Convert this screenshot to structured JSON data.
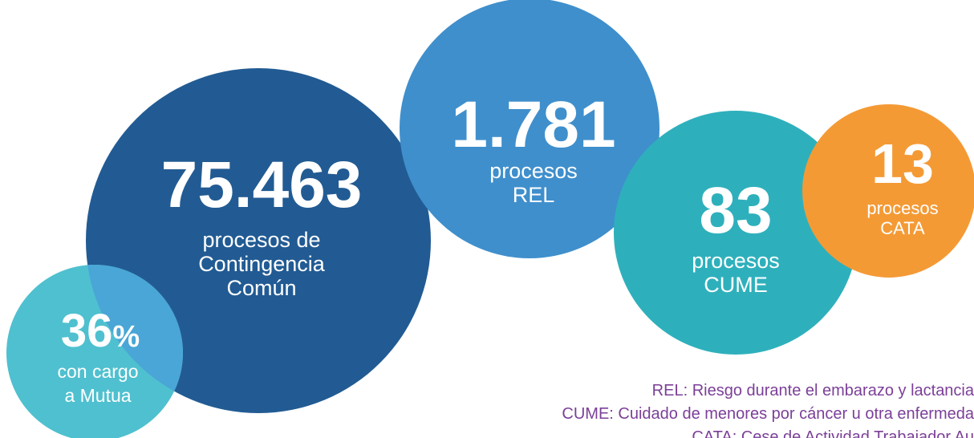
{
  "bubbles": [
    {
      "number": "75.463",
      "lines": [
        "procesos de",
        "Contingencia",
        "Común"
      ]
    },
    {
      "number": "1.781",
      "lines": [
        "procesos",
        "REL"
      ]
    },
    {
      "number": "83",
      "lines": [
        "procesos",
        "CUME"
      ]
    },
    {
      "number": "13",
      "lines": [
        "procesos",
        "CATA"
      ]
    },
    {
      "number": "36",
      "unit": "%",
      "lines": [
        "con cargo",
        "a Mutua"
      ]
    }
  ],
  "legend": [
    "REL: Riesgo durante el embarazo y lactancia",
    "CUME: Cuidado de menores por cáncer u otra enfermeda",
    "CATA: Cese de Actividad Trabajador Au"
  ]
}
